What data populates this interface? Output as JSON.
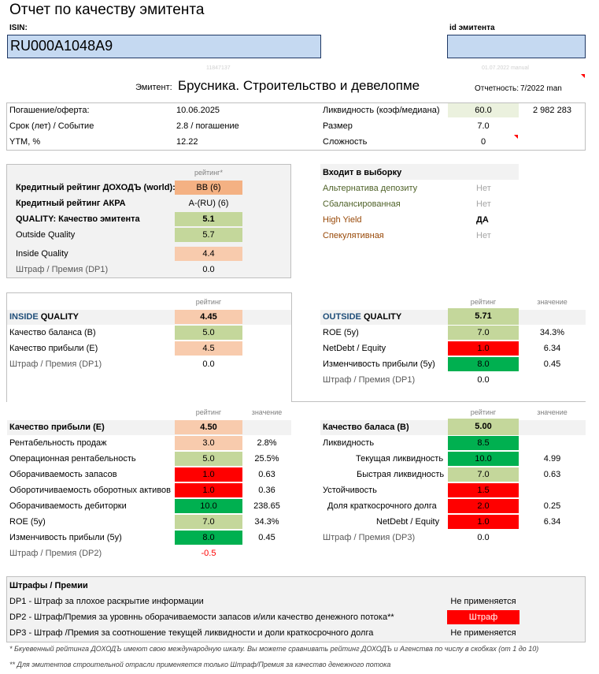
{
  "title": "Отчет по качеству эмитента",
  "isin": {
    "label": "ISIN:",
    "value": "RU000A1048A9"
  },
  "issuer_id": {
    "label": "id эмитента",
    "value": ""
  },
  "faint": {
    "left": "11847137",
    "right": "01.07.2022 manual"
  },
  "issuer": {
    "label": "Эмитент:",
    "name": "Брусника. Строительство и девелопме",
    "report_label": "Отчетность:",
    "report_value": "7/2022 man"
  },
  "summary": {
    "maturity_label": "Погашение/оферта:",
    "maturity_value": "10.06.2025",
    "term_label": "Срок (лет) / Событие",
    "term_value": "2.8 / погашение",
    "ytm_label": "YTM, %",
    "ytm_value": "12.22",
    "liquidity_label": "Ликвидность (коэф/медиана)",
    "liquidity_value": "60.0",
    "liquidity_median": "2 982 283",
    "size_label": "Размер",
    "size_value": "7.0",
    "complexity_label": "Сложность",
    "complexity_value": "0"
  },
  "ratings": {
    "header": "рейтинг*",
    "rows": [
      {
        "label": "Кредитный рейтинг ДОХОДЪ (world):",
        "value": "BB (6)"
      },
      {
        "label": "Кредитный рейтинг АКРА",
        "value": "A-(RU) (6)"
      },
      {
        "label": "QUALITY: Качество эмитента",
        "value": "5.1"
      },
      {
        "label": "Outside Quality",
        "value": "5.7"
      },
      {
        "label": "Inside Quality",
        "value": "4.4"
      },
      {
        "label": "Штраф / Премия (DP1)",
        "value": "0.0"
      }
    ]
  },
  "selection": {
    "title": "Входит в выборку",
    "rows": [
      {
        "label": "Альтернатива депозиту",
        "value": "Нет"
      },
      {
        "label": "Сбалансированная",
        "value": "Нет"
      },
      {
        "label": "High Yield",
        "value": "ДА"
      },
      {
        "label": "Спекулятивная",
        "value": "Нет"
      }
    ]
  },
  "inside": {
    "header": "рейтинг",
    "title_a": "INSIDE",
    "title_b": " QUALITY",
    "total": "4.45",
    "rows": [
      {
        "label": "Качество баланса (B)",
        "value": "5.0"
      },
      {
        "label": "Качество прибыли (E)",
        "value": "4.5"
      },
      {
        "label": "Штраф / Премия (DP1)",
        "value": "0.0"
      }
    ]
  },
  "outside": {
    "header": "рейтинг",
    "header2": "значение",
    "title_a": "OUTSIDE",
    "title_b": " QUALITY",
    "total": "5.71",
    "rows": [
      {
        "label": "ROE (5y)",
        "value": "7.0",
        "extra": "34.3%"
      },
      {
        "label": "NetDebt / Equity",
        "value": "1.0",
        "extra": "6.34"
      },
      {
        "label": "Изменчивость прибыли (5y)",
        "value": "8.0",
        "extra": "0.45"
      },
      {
        "label": "Штраф / Премия (DP1)",
        "value": "0.0",
        "extra": ""
      }
    ]
  },
  "profit": {
    "header": "рейтинг",
    "header2": "значение",
    "title": "Качество прибыли (E)",
    "total": "4.50",
    "rows": [
      {
        "label": "Рентабельность продаж",
        "value": "3.0",
        "extra": "2.8%"
      },
      {
        "label": "Операционная рентабельность",
        "value": "5.0",
        "extra": "25.5%"
      },
      {
        "label": "Оборачиваемость запасов",
        "value": "1.0",
        "extra": "0.63"
      },
      {
        "label": "Оборотичиваемость оборотных активов",
        "value": "1.0",
        "extra": "0.36"
      },
      {
        "label": "Оборачиваемость дебиторки",
        "value": "10.0",
        "extra": "238.65"
      },
      {
        "label": "ROE (5y)",
        "value": "7.0",
        "extra": "34.3%"
      },
      {
        "label": "Изменчивость прибыли (5y)",
        "value": "8.0",
        "extra": "0.45"
      },
      {
        "label": "Штраф / Премия (DP2)",
        "value": "-0.5",
        "extra": ""
      }
    ]
  },
  "balance": {
    "header": "рейтинг",
    "header2": "значение",
    "title": "Качество баласа (B)",
    "total": "5.00",
    "rows": [
      {
        "label": "Ликвидность",
        "value": "8.5",
        "extra": ""
      },
      {
        "label": "Текущая ликвидность",
        "value": "10.0",
        "extra": "4.99"
      },
      {
        "label": "Быстрая ликвидность",
        "value": "7.0",
        "extra": "0.63"
      },
      {
        "label": "Устойчивость",
        "value": "1.5",
        "extra": ""
      },
      {
        "label": "Доля краткосрочного долга",
        "value": "2.0",
        "extra": "0.25"
      },
      {
        "label": "NetDebt / Equity",
        "value": "1.0",
        "extra": "6.34"
      },
      {
        "label": "Штраф / Премия (DP3)",
        "value": "0.0",
        "extra": ""
      }
    ]
  },
  "penalties": {
    "title": "Штрафы / Премии",
    "rows": [
      {
        "label": "DP1 - Штраф за плохое раскрытие информации",
        "value": "Не применяется"
      },
      {
        "label": "DP2 - Штраф/Премия за уровннь оборачиваемости запасов и/или качество денежного потока**",
        "value": "Штраф"
      },
      {
        "label": "DP3 - Штраф /Премия за соотношение текущей ликвидности и доли краткосрочного долга",
        "value": "Не применяется"
      }
    ]
  },
  "notes": {
    "n1": "* Бкуевенный рейтинга ДОХОДЪ имеют свою международную шкалу. Вы можете сравнивать рейтинг ДОХОДЪ и Агенства по числу в скобках (от 1 до 10)",
    "n2": "** Для эмитентов строительной отрасли применяется только Штраф/Премия за качество денежного потока"
  },
  "colors": {
    "input_bg": "#c5d9f1",
    "peach": "#f8cbad",
    "light_green": "#c4d79b",
    "red": "#ff0000",
    "green": "#00b050",
    "orange": "#f4b183",
    "brown_text": "#984807"
  }
}
